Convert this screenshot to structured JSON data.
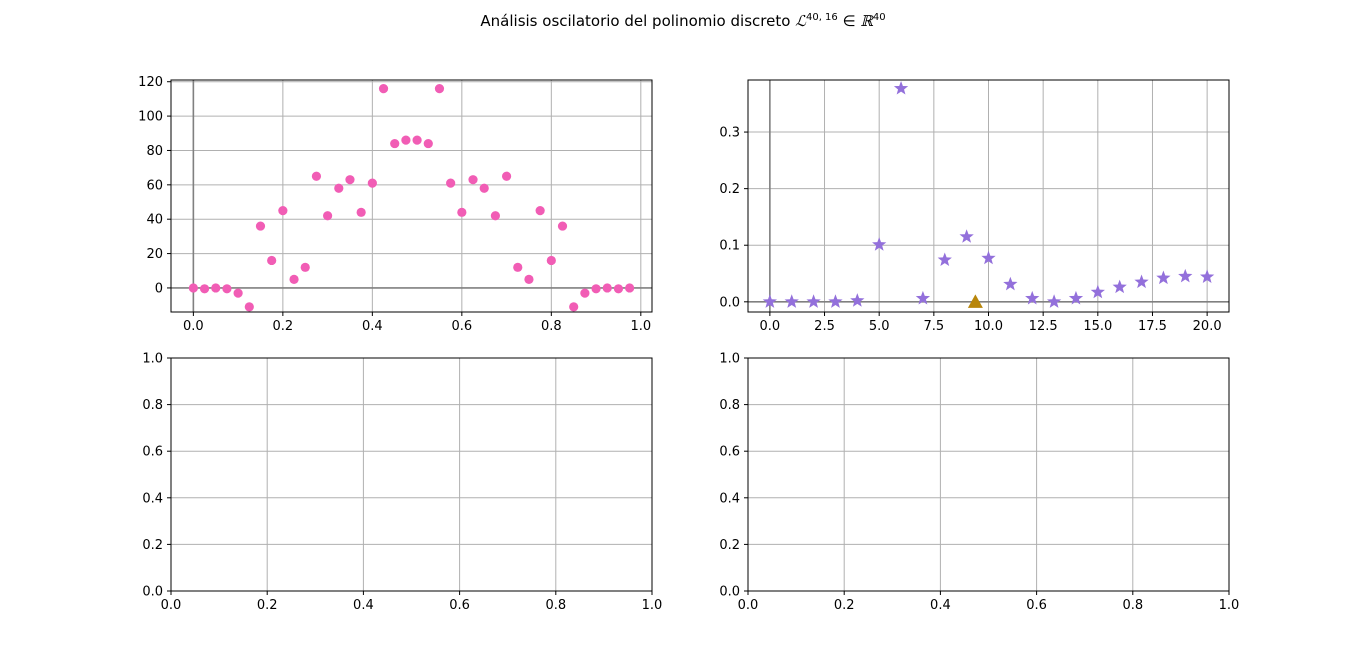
{
  "title": {
    "prefix": "Análisis oscilatorio del polinomio discreto ",
    "symbol": "ℒ",
    "superscript": "40, 16",
    "relation": " ∈ ",
    "space": "ℝ",
    "space_superscript": "40"
  },
  "colors": {
    "pink": "#f15db5",
    "purple": "#9370db",
    "gold": "#b8860b",
    "grid": "#b0b0b0",
    "zero_line": "#808080"
  },
  "chart_data": [
    {
      "type": "scatter",
      "panel": "top-left",
      "marker": "circle",
      "color": "#f15db5",
      "xlim": [
        -0.05,
        1.025
      ],
      "ylim": [
        -14,
        121
      ],
      "xticks": [
        0.0,
        0.2,
        0.4,
        0.6,
        0.8,
        1.0
      ],
      "xtick_labels": [
        "0.0",
        "0.2",
        "0.4",
        "0.6",
        "0.8",
        "1.0"
      ],
      "yticks": [
        0,
        20,
        40,
        60,
        80,
        100,
        120
      ],
      "ytick_labels": [
        "0",
        "20",
        "40",
        "60",
        "80",
        "100",
        "120"
      ],
      "grid": true,
      "zero_lines": true,
      "x": [
        0.0,
        0.025,
        0.05,
        0.075,
        0.1,
        0.125,
        0.15,
        0.175,
        0.2,
        0.225,
        0.25,
        0.275,
        0.3,
        0.325,
        0.35,
        0.375,
        0.4,
        0.425,
        0.45,
        0.475,
        0.5,
        0.525,
        0.55,
        0.575,
        0.6,
        0.625,
        0.65,
        0.675,
        0.7,
        0.725,
        0.75,
        0.775,
        0.8,
        0.825,
        0.85,
        0.875,
        0.9,
        0.925,
        0.95,
        0.975
      ],
      "y": [
        0,
        -0.5,
        0,
        -0.5,
        -3,
        -11,
        36,
        16,
        45,
        5,
        12,
        65,
        42,
        58,
        63,
        44,
        61,
        116,
        84,
        86,
        86,
        84,
        116,
        61,
        44,
        63,
        58,
        42,
        65,
        12,
        5,
        45,
        16,
        36,
        -11,
        -3,
        -0.5,
        0,
        -0.5,
        0
      ]
    },
    {
      "type": "scatter",
      "panel": "top-right",
      "marker": "star",
      "color": "#9370db",
      "xlim": [
        -1.0,
        21.0
      ],
      "ylim": [
        -0.018,
        0.392
      ],
      "xticks": [
        0,
        2.5,
        5,
        7.5,
        10,
        12.5,
        15,
        17.5,
        20
      ],
      "xtick_labels": [
        "0.0",
        "2.5",
        "5.0",
        "7.5",
        "10.0",
        "12.5",
        "15.0",
        "17.5",
        "20.0"
      ],
      "yticks": [
        0.0,
        0.1,
        0.2,
        0.3
      ],
      "ytick_labels": [
        "0.0",
        "0.1",
        "0.2",
        "0.3"
      ],
      "grid": true,
      "zero_lines": true,
      "x": [
        0,
        1,
        2,
        3,
        4,
        5,
        6,
        7,
        8,
        9,
        10,
        11,
        12,
        13,
        14,
        15,
        16,
        17,
        18,
        19,
        20
      ],
      "y": [
        0.0,
        0.0,
        0.0,
        0.0,
        0.002,
        0.101,
        0.377,
        0.006,
        0.074,
        0.115,
        0.077,
        0.031,
        0.006,
        0.0,
        0.006,
        0.017,
        0.026,
        0.035,
        0.042,
        0.045,
        0.044
      ],
      "extra_marker": {
        "marker": "triangle",
        "color": "#b8860b",
        "x": 9.4,
        "y": 0.0
      }
    },
    {
      "type": "scatter",
      "panel": "bottom-left",
      "empty": true,
      "xlim": [
        0,
        1
      ],
      "ylim": [
        0,
        1
      ],
      "xticks": [
        0.0,
        0.2,
        0.4,
        0.6,
        0.8,
        1.0
      ],
      "xtick_labels": [
        "0.0",
        "0.2",
        "0.4",
        "0.6",
        "0.8",
        "1.0"
      ],
      "yticks": [
        0.0,
        0.2,
        0.4,
        0.6,
        0.8,
        1.0
      ],
      "ytick_labels": [
        "0.0",
        "0.2",
        "0.4",
        "0.6",
        "0.8",
        "1.0"
      ],
      "grid": true,
      "x": [],
      "y": []
    },
    {
      "type": "scatter",
      "panel": "bottom-right",
      "empty": true,
      "xlim": [
        0,
        1
      ],
      "ylim": [
        0,
        1
      ],
      "xticks": [
        0.0,
        0.2,
        0.4,
        0.6,
        0.8,
        1.0
      ],
      "xtick_labels": [
        "0.0",
        "0.2",
        "0.4",
        "0.6",
        "0.8",
        "1.0"
      ],
      "yticks": [
        0.0,
        0.2,
        0.4,
        0.6,
        0.8,
        1.0
      ],
      "ytick_labels": [
        "0.0",
        "0.2",
        "0.4",
        "0.6",
        "0.8",
        "1.0"
      ],
      "grid": true,
      "x": [],
      "y": []
    }
  ]
}
